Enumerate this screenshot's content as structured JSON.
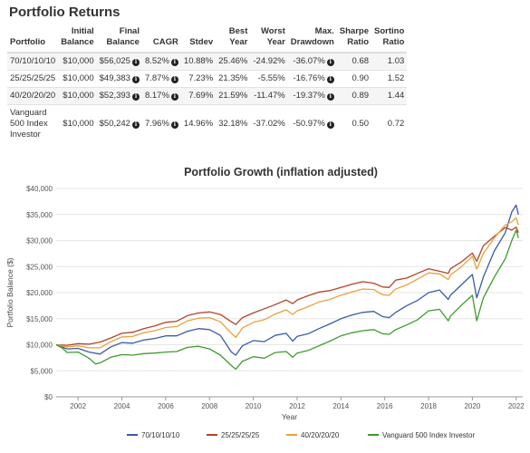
{
  "section_title": "Portfolio Returns",
  "table": {
    "headers": [
      [
        "Portfolio"
      ],
      [
        "Initial",
        "Balance"
      ],
      [
        "Final",
        "Balance"
      ],
      [
        "CAGR"
      ],
      [
        "Stdev"
      ],
      [
        "Best",
        "Year"
      ],
      [
        "Worst",
        "Year"
      ],
      [
        "Max.",
        "Drawdown"
      ],
      [
        "Sharpe",
        "Ratio"
      ],
      [
        "Sortino",
        "Ratio"
      ]
    ],
    "rows": [
      {
        "portfolio": "70/10/10/10",
        "initial": "$10,000",
        "final": "$56,025",
        "cagr": "8.52%",
        "stdev": "10.88%",
        "best": "25.46%",
        "worst": "-24.92%",
        "maxdd": "-36.07%",
        "sharpe": "0.68",
        "sortino": "1.03"
      },
      {
        "portfolio": "25/25/25/25",
        "initial": "$10,000",
        "final": "$49,383",
        "cagr": "7.87%",
        "stdev": "7.23%",
        "best": "21.35%",
        "worst": "-5.55%",
        "maxdd": "-16.76%",
        "sharpe": "0.90",
        "sortino": "1.52"
      },
      {
        "portfolio": "40/20/20/20",
        "initial": "$10,000",
        "final": "$52,393",
        "cagr": "8.17%",
        "stdev": "7.69%",
        "best": "21.59%",
        "worst": "-11.47%",
        "maxdd": "-19.37%",
        "sharpe": "0.89",
        "sortino": "1.44"
      },
      {
        "portfolio": "Vanguard 500 Index Investor",
        "initial": "$10,000",
        "final": "$50,242",
        "cagr": "7.96%",
        "stdev": "14.96%",
        "best": "32.18%",
        "worst": "-37.02%",
        "maxdd": "-50.97%",
        "sharpe": "0.50",
        "sortino": "0.72"
      }
    ]
  },
  "chart_data": {
    "type": "line",
    "title": "Portfolio Growth (inflation adjusted)",
    "xlabel": "Year",
    "ylabel": "Portfolio Balance ($)",
    "xlim": [
      2001,
      2022.3
    ],
    "ylim": [
      0,
      40000
    ],
    "x_ticks": [
      "2002",
      "2004",
      "2006",
      "2008",
      "2010",
      "2012",
      "2014",
      "2016",
      "2018",
      "2020",
      "2022"
    ],
    "y_ticks": [
      "$0",
      "$5,000",
      "$10,000",
      "$15,000",
      "$20,000",
      "$25,000",
      "$30,000",
      "$35,000",
      "$40,000"
    ],
    "grid": true,
    "legend_position": "bottom",
    "series": [
      {
        "name": "70/10/10/10",
        "color": "#3a5ba8",
        "points": [
          [
            2001,
            10000
          ],
          [
            2001.5,
            9200
          ],
          [
            2002,
            9300
          ],
          [
            2002.5,
            8600
          ],
          [
            2003,
            8200
          ],
          [
            2003.5,
            9600
          ],
          [
            2004,
            10400
          ],
          [
            2004.5,
            10300
          ],
          [
            2005,
            10900
          ],
          [
            2005.5,
            11200
          ],
          [
            2006,
            11700
          ],
          [
            2006.5,
            11700
          ],
          [
            2007,
            12600
          ],
          [
            2007.5,
            13100
          ],
          [
            2008,
            12900
          ],
          [
            2008.5,
            11800
          ],
          [
            2009,
            8600
          ],
          [
            2009.2,
            8000
          ],
          [
            2009.5,
            9800
          ],
          [
            2010,
            10800
          ],
          [
            2010.5,
            10600
          ],
          [
            2011,
            11800
          ],
          [
            2011.5,
            12200
          ],
          [
            2011.8,
            10700
          ],
          [
            2012,
            11600
          ],
          [
            2012.5,
            12100
          ],
          [
            2013,
            13100
          ],
          [
            2013.5,
            14000
          ],
          [
            2014,
            15000
          ],
          [
            2014.5,
            15700
          ],
          [
            2015,
            16200
          ],
          [
            2015.5,
            16400
          ],
          [
            2015.9,
            15400
          ],
          [
            2016.2,
            15200
          ],
          [
            2016.5,
            16200
          ],
          [
            2017,
            17500
          ],
          [
            2017.5,
            18500
          ],
          [
            2018,
            20000
          ],
          [
            2018.5,
            20500
          ],
          [
            2018.9,
            18700
          ],
          [
            2019,
            19500
          ],
          [
            2019.5,
            21500
          ],
          [
            2020,
            23500
          ],
          [
            2020.2,
            19000
          ],
          [
            2020.5,
            23000
          ],
          [
            2021,
            28000
          ],
          [
            2021.5,
            31500
          ],
          [
            2021.8,
            35500
          ],
          [
            2022,
            36800
          ],
          [
            2022.1,
            35000
          ]
        ]
      },
      {
        "name": "25/25/25/25",
        "color": "#b34328",
        "points": [
          [
            2001,
            10000
          ],
          [
            2001.5,
            9900
          ],
          [
            2002,
            10200
          ],
          [
            2002.5,
            10100
          ],
          [
            2003,
            10500
          ],
          [
            2003.5,
            11300
          ],
          [
            2004,
            12200
          ],
          [
            2004.5,
            12400
          ],
          [
            2005,
            13100
          ],
          [
            2005.5,
            13600
          ],
          [
            2006,
            14300
          ],
          [
            2006.5,
            14500
          ],
          [
            2007,
            15600
          ],
          [
            2007.5,
            16100
          ],
          [
            2008,
            16300
          ],
          [
            2008.5,
            15800
          ],
          [
            2009,
            14400
          ],
          [
            2009.2,
            13900
          ],
          [
            2009.5,
            15200
          ],
          [
            2010,
            16100
          ],
          [
            2010.5,
            16900
          ],
          [
            2011,
            17700
          ],
          [
            2011.5,
            18600
          ],
          [
            2011.8,
            17900
          ],
          [
            2012,
            18600
          ],
          [
            2012.5,
            19400
          ],
          [
            2013,
            20100
          ],
          [
            2013.5,
            20400
          ],
          [
            2014,
            21000
          ],
          [
            2014.5,
            21600
          ],
          [
            2015,
            22100
          ],
          [
            2015.5,
            21800
          ],
          [
            2015.9,
            21100
          ],
          [
            2016.2,
            21000
          ],
          [
            2016.5,
            22400
          ],
          [
            2017,
            22800
          ],
          [
            2017.5,
            23700
          ],
          [
            2018,
            24600
          ],
          [
            2018.5,
            24100
          ],
          [
            2018.9,
            23700
          ],
          [
            2019,
            24600
          ],
          [
            2019.5,
            25900
          ],
          [
            2020,
            27600
          ],
          [
            2020.2,
            26000
          ],
          [
            2020.5,
            29000
          ],
          [
            2021,
            30800
          ],
          [
            2021.5,
            32500
          ],
          [
            2021.8,
            32000
          ],
          [
            2022,
            32600
          ],
          [
            2022.1,
            31500
          ]
        ]
      },
      {
        "name": "40/20/20/20",
        "color": "#e8a23c",
        "points": [
          [
            2001,
            10000
          ],
          [
            2001.5,
            9600
          ],
          [
            2002,
            9800
          ],
          [
            2002.5,
            9400
          ],
          [
            2003,
            9400
          ],
          [
            2003.5,
            10600
          ],
          [
            2004,
            11500
          ],
          [
            2004.5,
            11600
          ],
          [
            2005,
            12300
          ],
          [
            2005.5,
            12700
          ],
          [
            2006,
            13300
          ],
          [
            2006.5,
            13500
          ],
          [
            2007,
            14600
          ],
          [
            2007.5,
            15100
          ],
          [
            2008,
            15200
          ],
          [
            2008.5,
            14400
          ],
          [
            2009,
            12200
          ],
          [
            2009.2,
            11400
          ],
          [
            2009.5,
            13200
          ],
          [
            2010,
            14300
          ],
          [
            2010.5,
            14800
          ],
          [
            2011,
            15900
          ],
          [
            2011.5,
            16700
          ],
          [
            2011.8,
            15800
          ],
          [
            2012,
            16500
          ],
          [
            2012.5,
            17300
          ],
          [
            2013,
            18200
          ],
          [
            2013.5,
            18700
          ],
          [
            2014,
            19500
          ],
          [
            2014.5,
            20100
          ],
          [
            2015,
            20700
          ],
          [
            2015.5,
            20600
          ],
          [
            2015.9,
            19600
          ],
          [
            2016.2,
            19500
          ],
          [
            2016.5,
            20700
          ],
          [
            2017,
            21500
          ],
          [
            2017.5,
            22600
          ],
          [
            2018,
            23800
          ],
          [
            2018.5,
            23600
          ],
          [
            2018.9,
            22500
          ],
          [
            2019,
            23400
          ],
          [
            2019.5,
            25000
          ],
          [
            2020,
            27000
          ],
          [
            2020.2,
            24500
          ],
          [
            2020.5,
            27500
          ],
          [
            2021,
            30500
          ],
          [
            2021.5,
            33000
          ],
          [
            2021.8,
            33600
          ],
          [
            2022,
            34400
          ],
          [
            2022.1,
            33000
          ]
        ]
      },
      {
        "name": "Vanguard 500 Index Investor",
        "color": "#3f9a2e",
        "points": [
          [
            2001,
            10000
          ],
          [
            2001.3,
            9300
          ],
          [
            2001.5,
            8500
          ],
          [
            2002,
            8600
          ],
          [
            2002.5,
            7400
          ],
          [
            2002.8,
            6300
          ],
          [
            2003,
            6500
          ],
          [
            2003.5,
            7600
          ],
          [
            2004,
            8100
          ],
          [
            2004.5,
            8000
          ],
          [
            2005,
            8300
          ],
          [
            2005.5,
            8400
          ],
          [
            2006,
            8600
          ],
          [
            2006.5,
            8700
          ],
          [
            2007,
            9500
          ],
          [
            2007.5,
            9700
          ],
          [
            2008,
            9200
          ],
          [
            2008.5,
            8000
          ],
          [
            2009,
            6000
          ],
          [
            2009.2,
            5300
          ],
          [
            2009.5,
            6800
          ],
          [
            2010,
            7700
          ],
          [
            2010.5,
            7400
          ],
          [
            2011,
            8500
          ],
          [
            2011.5,
            8700
          ],
          [
            2011.8,
            7600
          ],
          [
            2012,
            8400
          ],
          [
            2012.5,
            8900
          ],
          [
            2013,
            9800
          ],
          [
            2013.5,
            10700
          ],
          [
            2014,
            11700
          ],
          [
            2014.5,
            12300
          ],
          [
            2015,
            12700
          ],
          [
            2015.5,
            12900
          ],
          [
            2015.9,
            12100
          ],
          [
            2016.2,
            12000
          ],
          [
            2016.5,
            12900
          ],
          [
            2017,
            13800
          ],
          [
            2017.5,
            14800
          ],
          [
            2018,
            16500
          ],
          [
            2018.5,
            16800
          ],
          [
            2018.9,
            14600
          ],
          [
            2019,
            15500
          ],
          [
            2019.5,
            17600
          ],
          [
            2020,
            19500
          ],
          [
            2020.2,
            14600
          ],
          [
            2020.5,
            19000
          ],
          [
            2021,
            23000
          ],
          [
            2021.5,
            26500
          ],
          [
            2021.8,
            30000
          ],
          [
            2022,
            32000
          ],
          [
            2022.1,
            30500
          ]
        ]
      }
    ]
  }
}
